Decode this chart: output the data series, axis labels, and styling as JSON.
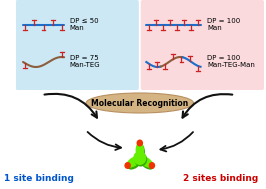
{
  "bg_color": "#ffffff",
  "left_box_color": "#cce8f4",
  "right_box_color": "#fadadd",
  "ellipse_color": "#d4b483",
  "ellipse_edge_color": "#b89060",
  "ellipse_text": "Molecular Recognition",
  "label_left_text": "1 site binding",
  "label_right_text": "2 sites binding",
  "label_left_color": "#0055cc",
  "label_right_color": "#cc0000",
  "dp1_text": "DP ≤ 50\nMan",
  "dp2_text": "DP = 75\nMan-TEG",
  "dp3_text": "DP = 100\nMan",
  "dp4_text": "DP = 100\nMan-TEG-Man",
  "polymer_blue": "#1a6fcc",
  "polymer_brown": "#8B5e3c",
  "sugar_red": "#cc2222",
  "lectin_green_light": "#66ee00",
  "lectin_green_dark": "#33aa00",
  "lectin_red": "#ee3300",
  "arrow_color": "#111111"
}
